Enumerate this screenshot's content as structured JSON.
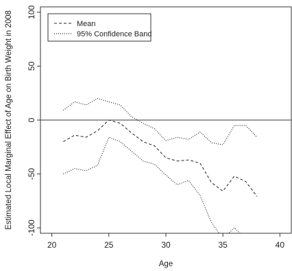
{
  "chart_data": {
    "type": "line",
    "xlabel": "Age",
    "ylabel": "Estimated Local Marginal Effect of Age on Birth Weight in 2008",
    "xlim": [
      19,
      41
    ],
    "ylim": [
      -105,
      105
    ],
    "x_ticks": [
      20,
      25,
      30,
      35,
      40
    ],
    "y_ticks": [
      -100,
      -50,
      0,
      50,
      100
    ],
    "reference_line_y": 0,
    "legend_position": "top-left",
    "colors": {
      "line": "#222222",
      "axis": "#333333"
    },
    "series": [
      {
        "name": "Mean",
        "style": "dashed",
        "x": [
          21,
          22,
          23,
          24,
          25,
          26,
          27,
          28,
          29,
          30,
          31,
          32,
          33,
          34,
          35,
          36,
          37,
          38
        ],
        "y": [
          -20,
          -14,
          -16,
          -10,
          0,
          -3,
          -12,
          -20,
          -24,
          -35,
          -38,
          -37,
          -40,
          -58,
          -66,
          -52,
          -57,
          -71
        ]
      },
      {
        "name": "95% Confidence Band",
        "style": "dotted",
        "x": [
          21,
          22,
          23,
          24,
          25,
          26,
          27,
          28,
          29,
          30,
          31,
          32,
          33,
          34,
          35,
          36,
          37,
          38
        ],
        "y": [
          9,
          17,
          14,
          20,
          17,
          14,
          3,
          -3,
          -8,
          -19,
          -16,
          -18,
          -11,
          -21,
          -23,
          -5,
          -5,
          -16
        ]
      },
      {
        "name": "",
        "style": "dotted",
        "x": [
          21,
          22,
          23,
          24,
          25,
          26,
          27,
          28,
          29,
          30,
          31,
          32,
          33,
          34,
          35,
          36,
          37,
          38
        ],
        "y": [
          -50,
          -45,
          -47,
          -42,
          -16,
          -20,
          -29,
          -38,
          -41,
          -51,
          -60,
          -56,
          -70,
          -95,
          -110,
          -100,
          -110,
          -120
        ]
      }
    ]
  }
}
